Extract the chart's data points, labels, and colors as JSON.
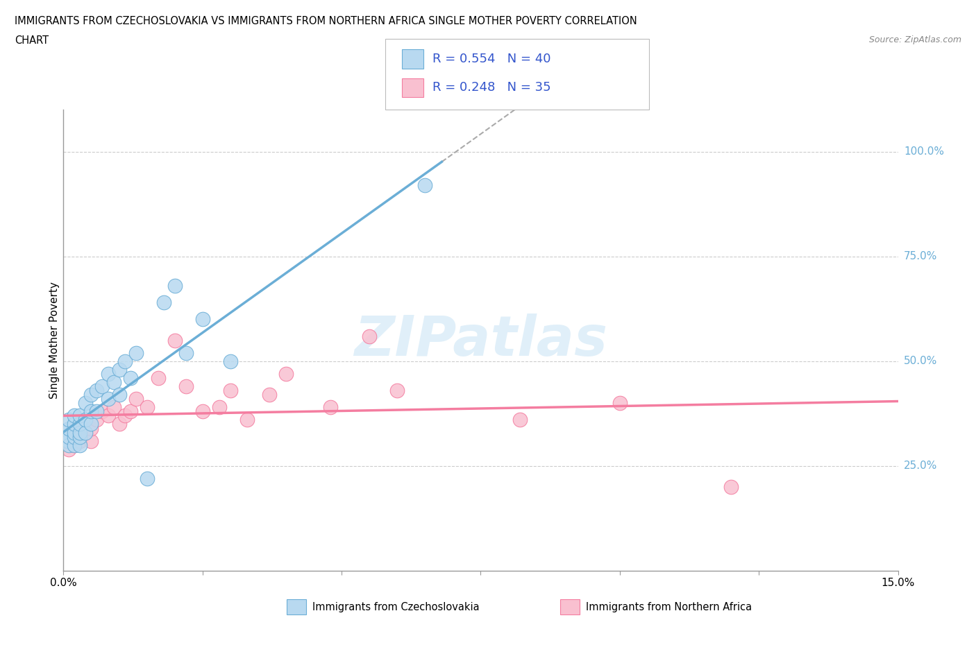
{
  "title_line1": "IMMIGRANTS FROM CZECHOSLOVAKIA VS IMMIGRANTS FROM NORTHERN AFRICA SINGLE MOTHER POVERTY CORRELATION",
  "title_line2": "CHART",
  "source": "Source: ZipAtlas.com",
  "ylabel": "Single Mother Poverty",
  "xlim": [
    0,
    0.15
  ],
  "ylim": [
    0,
    1.1
  ],
  "ytick_labels": [
    "25.0%",
    "50.0%",
    "75.0%",
    "100.0%"
  ],
  "ytick_values": [
    0.25,
    0.5,
    0.75,
    1.0
  ],
  "grid_color": "#cccccc",
  "czechoslovakia_color": "#6baed6",
  "czechoslovakia_fill": "#b8d9f0",
  "northafrica_color": "#f47da0",
  "northafrica_fill": "#f9c0d0",
  "stat_color": "#3355cc",
  "watermark": "ZIPatlas",
  "legend_r1": "R = 0.554   N = 40",
  "legend_r2": "R = 0.248   N = 35",
  "czechoslovakia_x": [
    0.0005,
    0.0008,
    0.001,
    0.001,
    0.001,
    0.001,
    0.002,
    0.002,
    0.002,
    0.002,
    0.002,
    0.003,
    0.003,
    0.003,
    0.003,
    0.003,
    0.004,
    0.004,
    0.004,
    0.005,
    0.005,
    0.005,
    0.006,
    0.006,
    0.007,
    0.008,
    0.008,
    0.009,
    0.01,
    0.01,
    0.011,
    0.012,
    0.013,
    0.015,
    0.018,
    0.02,
    0.022,
    0.025,
    0.03,
    0.065
  ],
  "czechoslovakia_y": [
    0.33,
    0.31,
    0.3,
    0.32,
    0.34,
    0.36,
    0.3,
    0.32,
    0.33,
    0.35,
    0.37,
    0.3,
    0.32,
    0.33,
    0.35,
    0.37,
    0.33,
    0.36,
    0.4,
    0.35,
    0.38,
    0.42,
    0.38,
    0.43,
    0.44,
    0.41,
    0.47,
    0.45,
    0.42,
    0.48,
    0.5,
    0.46,
    0.52,
    0.22,
    0.64,
    0.68,
    0.52,
    0.6,
    0.5,
    0.92
  ],
  "northafrica_x": [
    0.0005,
    0.001,
    0.001,
    0.002,
    0.002,
    0.002,
    0.003,
    0.003,
    0.004,
    0.005,
    0.005,
    0.006,
    0.007,
    0.008,
    0.009,
    0.01,
    0.011,
    0.012,
    0.013,
    0.015,
    0.017,
    0.02,
    0.022,
    0.025,
    0.028,
    0.03,
    0.033,
    0.037,
    0.04,
    0.048,
    0.055,
    0.06,
    0.082,
    0.1,
    0.12
  ],
  "northafrica_y": [
    0.31,
    0.29,
    0.32,
    0.3,
    0.32,
    0.34,
    0.31,
    0.33,
    0.33,
    0.31,
    0.34,
    0.36,
    0.38,
    0.37,
    0.39,
    0.35,
    0.37,
    0.38,
    0.41,
    0.39,
    0.46,
    0.55,
    0.44,
    0.38,
    0.39,
    0.43,
    0.36,
    0.42,
    0.47,
    0.39,
    0.56,
    0.43,
    0.36,
    0.4,
    0.2
  ]
}
